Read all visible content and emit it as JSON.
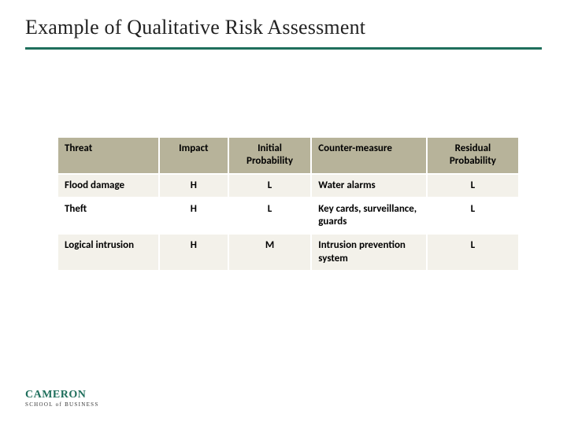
{
  "slide": {
    "title": "Example of Qualitative Risk Assessment",
    "rule_color": "#1f6f5c"
  },
  "table": {
    "type": "table",
    "header_bg": "#b7b39a",
    "row_odd_bg": "#f3f1ea",
    "row_even_bg": "#ffffff",
    "border_color": "#ffffff",
    "font_size": 13,
    "columns": [
      {
        "label": "Threat",
        "align": "left",
        "width_pct": 22
      },
      {
        "label": "Impact",
        "align": "center",
        "width_pct": 15
      },
      {
        "label": "Initial Probability",
        "align": "center",
        "width_pct": 18
      },
      {
        "label": "Counter-measure",
        "align": "left",
        "width_pct": 25
      },
      {
        "label": "Residual Probability",
        "align": "center",
        "width_pct": 20
      }
    ],
    "rows": [
      {
        "threat": "Flood damage",
        "impact": "H",
        "initial": "L",
        "counter": "Water alarms",
        "residual": "L"
      },
      {
        "threat": "Theft",
        "impact": "H",
        "initial": "L",
        "counter": "Key cards, surveillance, guards",
        "residual": "L"
      },
      {
        "threat": "Logical intrusion",
        "impact": "H",
        "initial": "M",
        "counter": "Intrusion prevention system",
        "residual": "L"
      }
    ]
  },
  "logo": {
    "main": "CAMERON",
    "sub": "SCHOOL of BUSINESS",
    "color": "#1f6f5c"
  }
}
